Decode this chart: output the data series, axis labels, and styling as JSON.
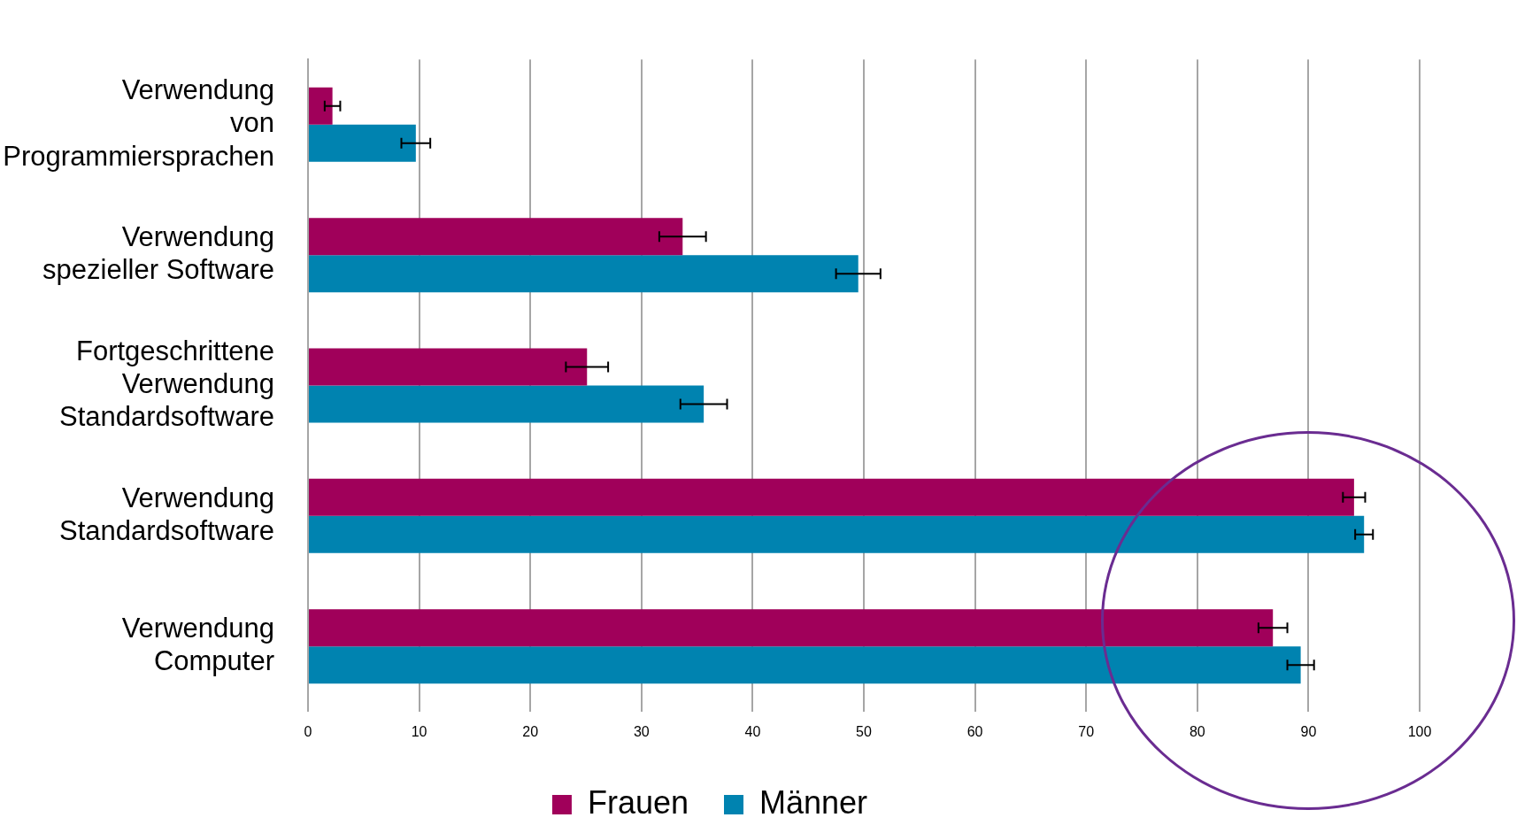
{
  "chart_data": {
    "type": "bar",
    "orientation": "horizontal",
    "categories": [
      "Verwendung\nvon\nProgrammiersprachen",
      "Verwendung\nspezieller Software",
      "Fortgeschrittene\nVerwendung\nStandardsoftware",
      "Verwendung\nStandardsoftware",
      "Verwendung\nComputer"
    ],
    "series": [
      {
        "name": "Frauen",
        "color": "#a0005a",
        "values": [
          2.2,
          33.7,
          25.1,
          94.1,
          86.8
        ],
        "errors": [
          0.7,
          2.1,
          1.9,
          1.0,
          1.3
        ]
      },
      {
        "name": "Männer",
        "color": "#0083b0",
        "values": [
          9.7,
          49.5,
          35.6,
          95.0,
          89.3
        ],
        "errors": [
          1.3,
          2.0,
          2.1,
          0.8,
          1.2
        ]
      }
    ],
    "xlim": [
      0,
      100
    ],
    "xticks": [
      0,
      10,
      20,
      30,
      40,
      50,
      60,
      70,
      80,
      90,
      100
    ],
    "grid": "x",
    "legend": "bottom"
  }
}
